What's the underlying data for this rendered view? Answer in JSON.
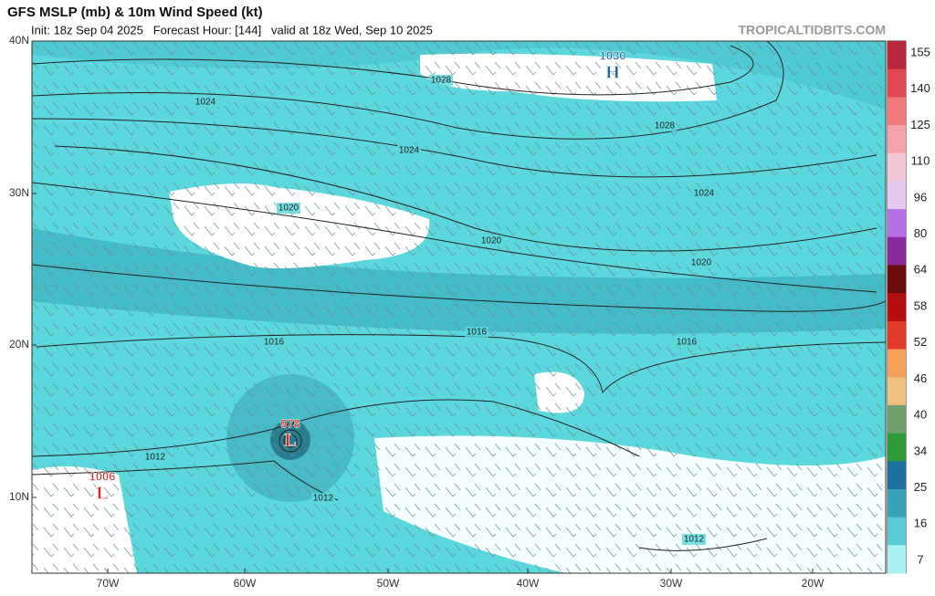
{
  "header": {
    "title": "GFS MSLP (mb) & 10m Wind Speed (kt)",
    "subtitle": "Init: 18z Sep 04 2025   Forecast Hour: [144]   valid at 18z Wed, Sep 10 2025",
    "source": "TROPICALTIDBITS.COM"
  },
  "map": {
    "lat_labels": [
      "40N",
      "30N",
      "20N",
      "10N"
    ],
    "lon_labels": [
      "70W",
      "60W",
      "50W",
      "40W",
      "30W",
      "20W"
    ],
    "isobar_labels": [
      "1028",
      "1024",
      "1024",
      "1028",
      "1024",
      "1020",
      "1020",
      "1020",
      "1016",
      "1016",
      "1016",
      "1012",
      "1012",
      "1012"
    ],
    "centers": [
      {
        "value": "1030",
        "symbol": "H"
      },
      {
        "value": "978",
        "symbol": "L"
      },
      {
        "value": "1006",
        "symbol": "L"
      }
    ]
  },
  "colorbar": {
    "labels": [
      155,
      140,
      125,
      110,
      96,
      80,
      64,
      58,
      52,
      46,
      40,
      34,
      25,
      16,
      7
    ]
  }
}
